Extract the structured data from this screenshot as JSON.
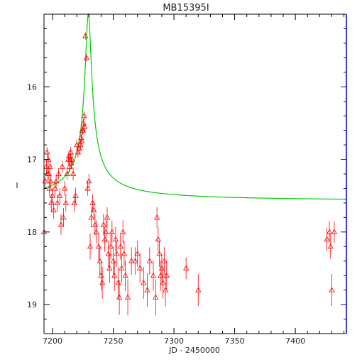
{
  "chart_data": {
    "type": "scatter",
    "title": "MB15395I",
    "xlabel": "JD - 2450000",
    "ylabel": "I",
    "xlim": [
      7193,
      7442
    ],
    "ylim": [
      19.4,
      15.0
    ],
    "y_inverted": true,
    "x_ticks": [
      "7200",
      "7250",
      "7300",
      "7350",
      "7400"
    ],
    "y_ticks": [
      "16",
      "17",
      "18",
      "19"
    ],
    "grid": false,
    "colors": {
      "data": "#ff0000",
      "model": "#00cc00",
      "axes": "#000000",
      "right_axis": "#0000cc"
    },
    "series": [
      {
        "kind": "points_with_errorbars",
        "marker": "open-triangle",
        "x": [
          7193,
          7194,
          7195,
          7195.5,
          7196,
          7196.5,
          7197,
          7197.5,
          7198,
          7198.5,
          7199,
          7200,
          7201,
          7202,
          7203,
          7204,
          7205,
          7206,
          7207,
          7208,
          7209,
          7210,
          7211,
          7212,
          7213,
          7213.5,
          7214,
          7214.5,
          7215,
          7215.5,
          7216,
          7217,
          7218,
          7219,
          7220,
          7221,
          7222,
          7223,
          7223.5,
          7224,
          7224.5,
          7225,
          7225.5,
          7226,
          7226.5,
          7227,
          7228,
          7229,
          7230,
          7231,
          7232,
          7233,
          7234,
          7235,
          7236,
          7238,
          7239,
          7240,
          7241,
          7242,
          7243,
          7244,
          7245,
          7246,
          7247,
          7248,
          7249,
          7250,
          7251,
          7252,
          7253,
          7254,
          7255,
          7256,
          7257,
          7258,
          7259,
          7260,
          7262,
          7265,
          7268,
          7270,
          7272,
          7275,
          7278,
          7280,
          7283,
          7285,
          7286,
          7287,
          7288,
          7289,
          7290,
          7291,
          7292,
          7293,
          7294,
          7310,
          7320,
          7426,
          7428,
          7429,
          7430,
          7432
        ],
        "y": [
          18.0,
          17.3,
          17.1,
          16.9,
          17.2,
          17.0,
          17.2,
          17.4,
          17.1,
          17.3,
          17.6,
          17.5,
          17.7,
          17.4,
          17.3,
          17.6,
          17.2,
          17.5,
          17.9,
          17.1,
          17.8,
          17.4,
          17.6,
          17.2,
          17.0,
          16.95,
          17.1,
          17.0,
          16.9,
          17.05,
          17.0,
          17.2,
          17.6,
          17.5,
          16.8,
          16.9,
          16.85,
          16.8,
          16.7,
          16.75,
          16.6,
          16.6,
          16.5,
          16.4,
          16.55,
          15.3,
          15.6,
          17.4,
          17.3,
          18.2,
          17.8,
          17.6,
          17.7,
          17.9,
          18.0,
          18.2,
          18.4,
          18.6,
          18.7,
          17.9,
          18.1,
          18.0,
          17.8,
          18.3,
          18.5,
          18.2,
          18.0,
          18.4,
          18.6,
          18.1,
          18.3,
          18.7,
          18.9,
          18.2,
          18.5,
          18.0,
          18.3,
          18.6,
          18.9,
          18.4,
          18.4,
          18.3,
          18.5,
          18.7,
          18.8,
          18.4,
          18.6,
          18.9,
          17.8,
          18.1,
          18.3,
          18.6,
          18.5,
          18.7,
          18.4,
          18.8,
          18.6,
          18.5,
          18.8,
          18.1,
          18.0,
          18.2,
          18.8,
          18.0
        ],
        "err": [
          0.06,
          0.08,
          0.09,
          0.07,
          0.1,
          0.08,
          0.09,
          0.11,
          0.08,
          0.1,
          0.12,
          0.1,
          0.12,
          0.1,
          0.09,
          0.12,
          0.08,
          0.1,
          0.14,
          0.08,
          0.13,
          0.1,
          0.12,
          0.08,
          0.07,
          0.07,
          0.08,
          0.07,
          0.07,
          0.08,
          0.07,
          0.09,
          0.12,
          0.11,
          0.07,
          0.07,
          0.07,
          0.07,
          0.06,
          0.06,
          0.06,
          0.06,
          0.06,
          0.06,
          0.06,
          0.05,
          0.05,
          0.1,
          0.1,
          0.18,
          0.14,
          0.12,
          0.13,
          0.15,
          0.16,
          0.18,
          0.2,
          0.2,
          0.22,
          0.15,
          0.17,
          0.16,
          0.14,
          0.18,
          0.2,
          0.18,
          0.16,
          0.19,
          0.21,
          0.17,
          0.18,
          0.22,
          0.24,
          0.18,
          0.2,
          0.16,
          0.18,
          0.21,
          0.25,
          0.19,
          0.19,
          0.18,
          0.2,
          0.22,
          0.23,
          0.19,
          0.21,
          0.25,
          0.14,
          0.17,
          0.18,
          0.21,
          0.2,
          0.22,
          0.19,
          0.23,
          0.21,
          0.15,
          0.22,
          0.16,
          0.15,
          0.17,
          0.22,
          0.15
        ]
      },
      {
        "kind": "model_curve",
        "baseline": 17.58,
        "peak_x": 7229.5,
        "peak_y": 15.0,
        "width_days": 2.6,
        "x_start": 7193,
        "x_end": 7442
      }
    ]
  }
}
